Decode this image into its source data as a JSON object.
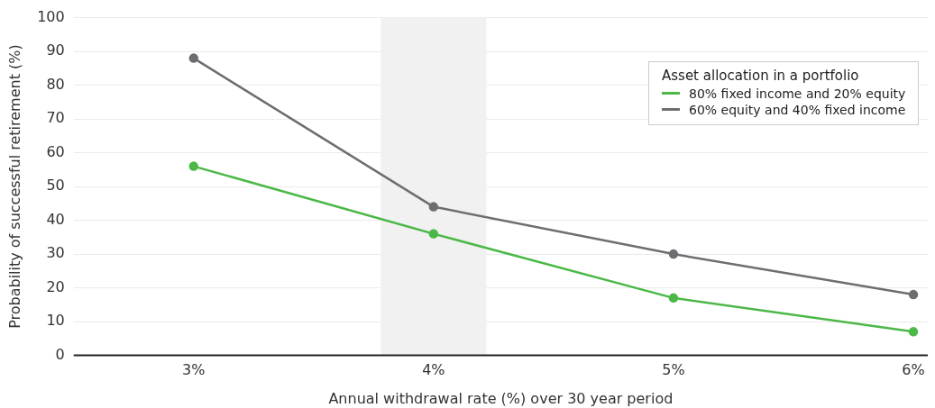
{
  "chart_data": {
    "type": "line",
    "xlabel": "Annual withdrawal rate (%) over 30 year period",
    "ylabel": "Probability of successful retirement (%)",
    "legend_title": "Asset allocation in a portfolio",
    "x": [
      3,
      4,
      5,
      6
    ],
    "series": [
      {
        "name": "80% fixed income and 20% equity",
        "color": "#4cb848",
        "values": [
          56,
          36,
          17,
          7
        ]
      },
      {
        "name": "60% equity and 40% fixed income",
        "color": "#6d6e71",
        "values": [
          88,
          44,
          30,
          18
        ]
      }
    ],
    "xlim": [
      2.5,
      6.06
    ],
    "xticks": [
      {
        "value": 3,
        "label": "3%"
      },
      {
        "value": 4,
        "label": "4%"
      },
      {
        "value": 5,
        "label": "5%"
      },
      {
        "value": 6,
        "label": "6%"
      }
    ],
    "ylim": [
      0,
      100
    ],
    "yticks": [
      0,
      10,
      20,
      30,
      40,
      50,
      60,
      70,
      80,
      90,
      100
    ],
    "bands": [
      {
        "axis": "x",
        "from": 3.78,
        "to": 4.22,
        "color": "#f0f1f0"
      }
    ],
    "grid": "y",
    "legend": "top right",
    "marker": "circle",
    "line_style": "solid"
  }
}
